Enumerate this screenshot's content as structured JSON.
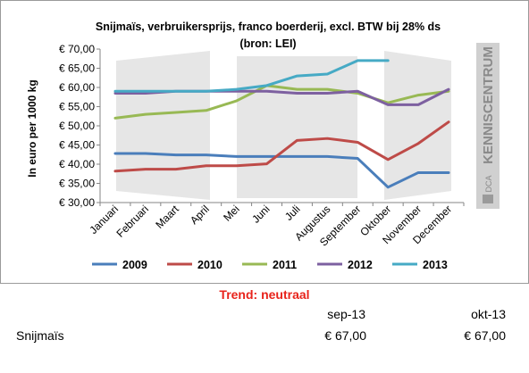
{
  "chart_data": {
    "type": "line",
    "title": "Snijmaïs, verbruikersprijs, franco boerderij, excl. BTW bij 28% ds",
    "subtitle": "(bron: LEI)",
    "ylabel": "In euro per 1000 kg",
    "xlabel": "",
    "ylim": [
      30,
      70
    ],
    "y_ticks": [
      "€ 30,00",
      "€ 35,00",
      "€ 40,00",
      "€ 45,00",
      "€ 50,00",
      "€ 55,00",
      "€ 60,00",
      "€ 65,00",
      "€ 70,00"
    ],
    "categories": [
      "Januari",
      "Februari",
      "Maart",
      "April",
      "Mei",
      "Juni",
      "Juli",
      "Augustus",
      "September",
      "Oktober",
      "November",
      "December"
    ],
    "legend_position": "bottom",
    "grid": false,
    "series": [
      {
        "name": "2009",
        "color": "#4a7ebb",
        "values": [
          42.8,
          42.8,
          42.4,
          42.4,
          42.0,
          42.0,
          42.0,
          42.0,
          41.5,
          34.0,
          37.8,
          37.8
        ]
      },
      {
        "name": "2010",
        "color": "#be4b48",
        "values": [
          38.2,
          38.7,
          38.7,
          39.6,
          39.6,
          40.1,
          46.2,
          46.7,
          45.7,
          41.2,
          45.4,
          51.0
        ]
      },
      {
        "name": "2011",
        "color": "#98b954",
        "values": [
          52.0,
          53.0,
          53.5,
          54.0,
          56.5,
          60.5,
          59.5,
          59.5,
          58.5,
          56.0,
          58.0,
          59.0
        ]
      },
      {
        "name": "2012",
        "color": "#7d60a0",
        "values": [
          58.5,
          58.5,
          59.0,
          59.0,
          59.0,
          59.0,
          58.5,
          58.5,
          59.0,
          55.5,
          55.5,
          59.5
        ]
      },
      {
        "name": "2013",
        "color": "#46aac5",
        "values": [
          59.0,
          59.0,
          59.0,
          59.0,
          59.5,
          60.5,
          63.0,
          63.5,
          67.0,
          67.0,
          null,
          null
        ]
      }
    ]
  },
  "brand": {
    "logo_text": "KENNISCENTRUM",
    "logo_prefix": "DCA",
    "bg_color": "#cfcfcf",
    "text_color": "#8a8a8a"
  },
  "trend": {
    "label": "Trend: neutraal",
    "color": "#e8231b"
  },
  "price_table": {
    "columns": [
      "sep-13",
      "okt-13"
    ],
    "rows": [
      {
        "label": "Snijmaïs",
        "values": [
          "€ 67,00",
          "€ 67,00"
        ]
      }
    ]
  }
}
